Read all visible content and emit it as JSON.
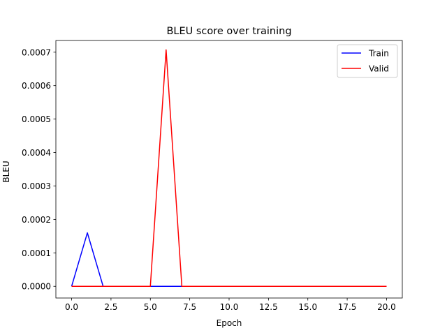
{
  "chart_data": {
    "type": "line",
    "title": "BLEU score over training",
    "xlabel": "Epoch",
    "ylabel": "BLEU",
    "xlim": [
      -1.0,
      21.0
    ],
    "ylim": [
      -3.5e-05,
      0.000735
    ],
    "x_ticks": [
      0.0,
      2.5,
      5.0,
      7.5,
      10.0,
      12.5,
      15.0,
      17.5,
      20.0
    ],
    "x_tick_labels": [
      "0.0",
      "2.5",
      "5.0",
      "7.5",
      "10.0",
      "12.5",
      "15.0",
      "17.5",
      "20.0"
    ],
    "y_ticks": [
      0.0,
      0.0001,
      0.0002,
      0.0003,
      0.0004,
      0.0005,
      0.0006,
      0.0007
    ],
    "y_tick_labels": [
      "0.0000",
      "0.0001",
      "0.0002",
      "0.0003",
      "0.0004",
      "0.0005",
      "0.0006",
      "0.0007"
    ],
    "grid": false,
    "legend_position": "top-right",
    "x": [
      0,
      1,
      2,
      3,
      4,
      5,
      6,
      7,
      8,
      9,
      10,
      11,
      12,
      13,
      14,
      15,
      16,
      17,
      18,
      19,
      20
    ],
    "series": [
      {
        "name": "Train",
        "color": "#0000ff",
        "values": [
          0,
          0.00016,
          0,
          0,
          0,
          0,
          0,
          0,
          0,
          0,
          0,
          0,
          0,
          0,
          0,
          0,
          0,
          0,
          0,
          0,
          0
        ]
      },
      {
        "name": "Valid",
        "color": "#ff0000",
        "values": [
          0,
          0,
          0,
          0,
          0,
          0,
          0.000707,
          0,
          0,
          0,
          0,
          0,
          0,
          0,
          0,
          0,
          0,
          0,
          0,
          0,
          0
        ]
      }
    ]
  }
}
